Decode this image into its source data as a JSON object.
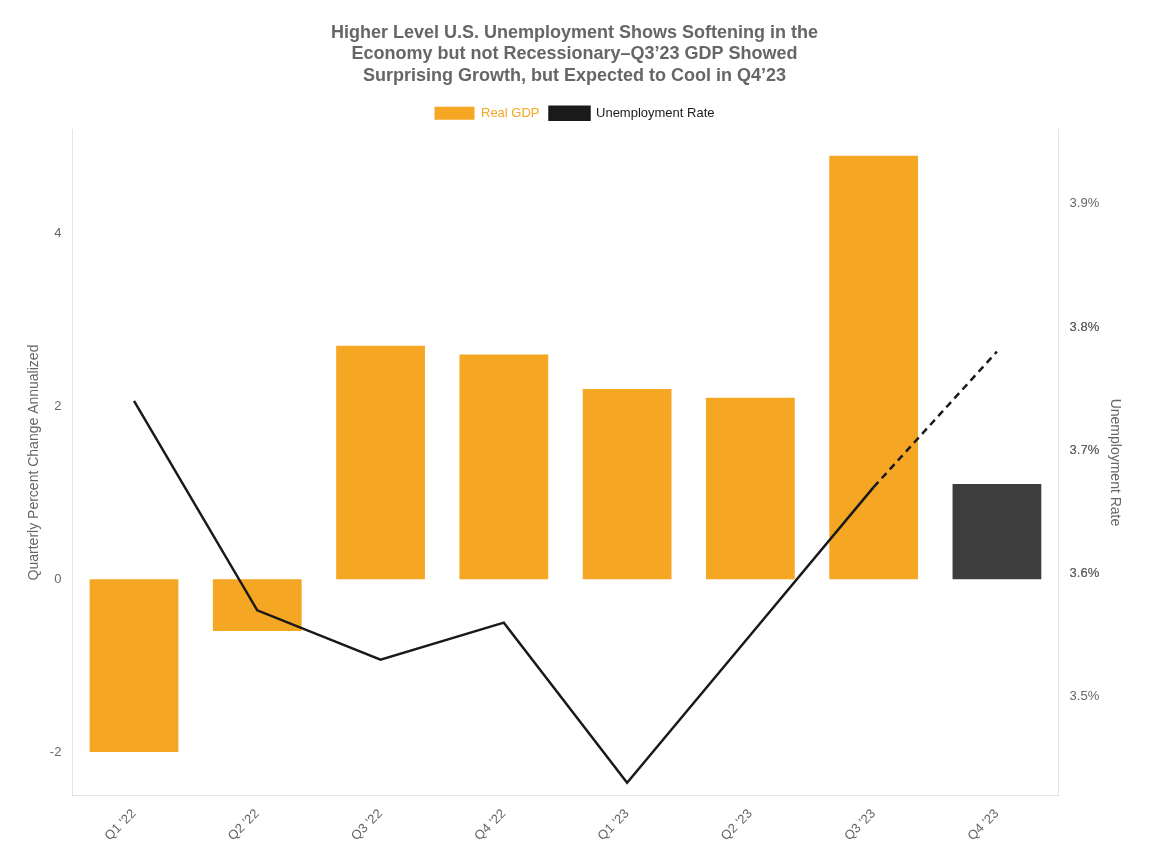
{
  "chart_data": {
    "type": "bar",
    "title": "Higher Level U.S. Unemployment Shows Softening in the\nEconomy but not Recessionary–Q3’23 GDP Showed\nSurprising Growth, but Expected to Cool in Q4’23",
    "categories": [
      "Q1 '22",
      "Q2 '22",
      "Q3 '22",
      "Q4 '22",
      "Q1 '23",
      "Q2 '23",
      "Q3 '23",
      "Q4 '23"
    ],
    "ylabel": "Quarterly Percent Change Annualized",
    "y2label": "Unemployment Rate",
    "ylim": [
      -2.5,
      5.2
    ],
    "yticks": [
      -2,
      0,
      2,
      4
    ],
    "y2lim": [
      3.42,
      3.96
    ],
    "y2ticks": [
      {
        "value": 3.5,
        "label": "3.5%"
      },
      {
        "value": 3.6,
        "label": "3.6%"
      },
      {
        "value": 3.6,
        "label": "3.6%"
      },
      {
        "value": 3.7,
        "label": "3.7%"
      },
      {
        "value": 3.7,
        "label": "3.7%"
      },
      {
        "value": 3.8,
        "label": "3.8%"
      },
      {
        "value": 3.8,
        "label": "3.8%"
      },
      {
        "value": 3.9,
        "label": "3.9%"
      }
    ],
    "grid": false,
    "legend": "top",
    "series": [
      {
        "name": "Real GDP",
        "type": "bar",
        "color": "#F5A623",
        "colors": [
          "#F5A623",
          "#F5A623",
          "#F5A623",
          "#F5A623",
          "#F5A623",
          "#F5A623",
          "#F5A623",
          "#3D3D3D"
        ],
        "values": [
          -2.0,
          -0.6,
          2.7,
          2.6,
          2.2,
          2.1,
          4.9,
          1.1
        ]
      },
      {
        "name": "Unemployment Rate",
        "type": "line",
        "axis": "y2",
        "color": "#1A1A1A",
        "line_style": "solid",
        "values": [
          3.74,
          3.57,
          3.53,
          3.56,
          3.43,
          3.55,
          3.67,
          null
        ]
      },
      {
        "type": "line",
        "axis": "y2",
        "color": "#1A1A1A",
        "line_style": "dashed",
        "values": [
          null,
          null,
          null,
          null,
          null,
          null,
          3.67,
          3.78
        ]
      }
    ]
  }
}
